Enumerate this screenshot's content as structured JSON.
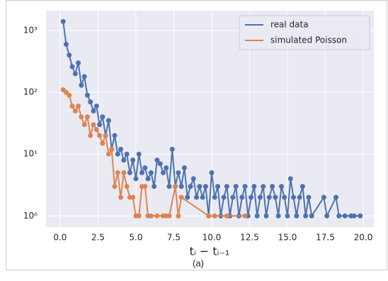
{
  "chart_data": {
    "type": "line",
    "log_y": true,
    "grid": true,
    "legend": "upper right",
    "xlabel": "tᵢ − tᵢ₋₁",
    "caption": "(a)",
    "xlim": [
      -0.93,
      20.7
    ],
    "ylim": [
      0.66,
      2100
    ],
    "xticks": [
      {
        "value": 0,
        "label": "0.0"
      },
      2.5,
      {
        "value": 5,
        "label": "5.0"
      },
      7.5,
      {
        "value": 10,
        "label": "10.0"
      },
      12.5,
      {
        "value": 15,
        "label": "15.0"
      },
      17.5,
      {
        "value": 20,
        "label": "20.0"
      }
    ],
    "yticks": [
      {
        "value": 1,
        "label": "10⁰"
      },
      {
        "value": 10,
        "label": "10¹"
      },
      {
        "value": 100,
        "label": "10²"
      },
      {
        "value": 1000,
        "label": "10³"
      }
    ],
    "series": [
      {
        "name": "real data",
        "color": "#4c72b0",
        "x": [
          0.2,
          0.4,
          0.6,
          0.8,
          1.0,
          1.2,
          1.4,
          1.6,
          1.8,
          2.0,
          2.2,
          2.4,
          2.6,
          2.8,
          3.0,
          3.2,
          3.4,
          3.6,
          3.8,
          4.0,
          4.2,
          4.4,
          4.6,
          4.8,
          5.0,
          5.2,
          5.4,
          5.6,
          5.8,
          6.0,
          6.2,
          6.4,
          6.6,
          6.8,
          7.0,
          7.2,
          7.4,
          7.6,
          7.8,
          8.0,
          8.2,
          8.4,
          8.6,
          8.8,
          9.0,
          9.2,
          9.4,
          9.6,
          9.8,
          10.0,
          10.2,
          10.4,
          10.6,
          10.8,
          11.0,
          11.2,
          11.4,
          11.6,
          11.8,
          12.0,
          12.2,
          12.4,
          12.6,
          12.8,
          13.0,
          13.2,
          13.4,
          13.6,
          13.8,
          14.0,
          14.2,
          14.4,
          14.6,
          14.8,
          15.0,
          15.2,
          15.4,
          15.6,
          15.8,
          16.0,
          16.2,
          16.4,
          16.6,
          17.4,
          17.6,
          18.2,
          18.4,
          18.8,
          19.2,
          19.4,
          19.8
        ],
        "values": [
          1400,
          600,
          400,
          260,
          200,
          300,
          130,
          180,
          90,
          70,
          50,
          60,
          30,
          40,
          20,
          35,
          12,
          20,
          10,
          12,
          8,
          10,
          5,
          8,
          4,
          10,
          5,
          6,
          4,
          5,
          3,
          8,
          7,
          5,
          6,
          3,
          12,
          3,
          5,
          3,
          6,
          2,
          3,
          4,
          2,
          3,
          2,
          3,
          1,
          5,
          2,
          3,
          1,
          2,
          3,
          1,
          2,
          3,
          1,
          2,
          3,
          1,
          2,
          3,
          1,
          2,
          3,
          1,
          2,
          3,
          2,
          1,
          3,
          2,
          1,
          4,
          2,
          1,
          2,
          3,
          1,
          2,
          1,
          2,
          1,
          2,
          1,
          1,
          1,
          1,
          1
        ]
      },
      {
        "name": "simulated Poisson",
        "color": "#dd8452",
        "x": [
          0.2,
          0.4,
          0.6,
          0.8,
          1.0,
          1.2,
          1.4,
          1.6,
          1.8,
          2.0,
          2.2,
          2.4,
          2.6,
          2.8,
          3.0,
          3.2,
          3.4,
          3.6,
          3.8,
          4.0,
          4.2,
          4.4,
          4.6,
          4.8,
          5.0,
          5.2,
          5.4,
          5.6,
          5.8,
          6.0,
          6.4,
          6.8,
          7.0,
          7.2,
          7.6,
          7.8,
          8.0,
          9.8,
          10.2,
          11.0,
          12.2
        ],
        "values": [
          110,
          100,
          90,
          60,
          50,
          60,
          40,
          30,
          40,
          20,
          30,
          25,
          20,
          15,
          20,
          10,
          12,
          3,
          5,
          2,
          5,
          3,
          2,
          2,
          1,
          1,
          3,
          3,
          1,
          1,
          1,
          1,
          1,
          1,
          3,
          1,
          2,
          1,
          1,
          1,
          1
        ]
      }
    ]
  }
}
